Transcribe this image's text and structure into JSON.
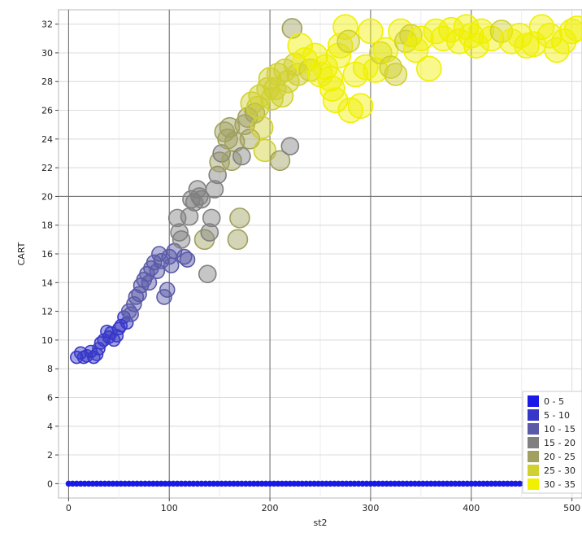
{
  "chart_data": {
    "type": "scatter",
    "xlabel": "st2",
    "ylabel": "CART",
    "xlim": [
      -10,
      510
    ],
    "ylim": [
      -1,
      33
    ],
    "x_ticks": [
      0,
      100,
      200,
      300,
      400,
      500
    ],
    "y_ticks": [
      0,
      2,
      4,
      6,
      8,
      10,
      12,
      14,
      16,
      18,
      20,
      22,
      24,
      26,
      28,
      30,
      32
    ],
    "major_gridlines": {
      "x": [
        0,
        100,
        200,
        300,
        400
      ],
      "y": [
        20
      ]
    },
    "grid": true,
    "legend_position": "bottom-right",
    "legend": [
      {
        "label": "0 - 5",
        "color": "#1a1ae6"
      },
      {
        "label": "5 - 10",
        "color": "#3838c8"
      },
      {
        "label": "10 - 15",
        "color": "#5a5aa8"
      },
      {
        "label": "15 - 20",
        "color": "#808080"
      },
      {
        "label": "20 - 25",
        "color": "#a0a060"
      },
      {
        "label": "25 - 30",
        "color": "#d0d030"
      },
      {
        "label": "30 - 35",
        "color": "#f0f000"
      }
    ],
    "points": [
      [
        8,
        8.8,
        1
      ],
      [
        12,
        9.1,
        1
      ],
      [
        15,
        8.8,
        1
      ],
      [
        18,
        8.9,
        1
      ],
      [
        22,
        9.2,
        1
      ],
      [
        25,
        8.8,
        1
      ],
      [
        28,
        9.0,
        1
      ],
      [
        30,
        9.4,
        1
      ],
      [
        32,
        9.8,
        1
      ],
      [
        35,
        10.0,
        1
      ],
      [
        38,
        10.6,
        1
      ],
      [
        40,
        10.2,
        1
      ],
      [
        42,
        10.5,
        1
      ],
      [
        45,
        10.0,
        1
      ],
      [
        48,
        10.3,
        1
      ],
      [
        50,
        10.8,
        1
      ],
      [
        52,
        11.0,
        1
      ],
      [
        55,
        11.6,
        1
      ],
      [
        58,
        11.2,
        1
      ],
      [
        60,
        12.0,
        2
      ],
      [
        62,
        11.8,
        2
      ],
      [
        65,
        12.5,
        2
      ],
      [
        67,
        13.0,
        2
      ],
      [
        70,
        13.2,
        2
      ],
      [
        72,
        13.8,
        2
      ],
      [
        75,
        14.2,
        2
      ],
      [
        78,
        14.6,
        2
      ],
      [
        80,
        14.0,
        2
      ],
      [
        82,
        15.0,
        2
      ],
      [
        85,
        15.4,
        2
      ],
      [
        88,
        14.8,
        2
      ],
      [
        90,
        16.0,
        2
      ],
      [
        92,
        15.5,
        2
      ],
      [
        95,
        13.0,
        2
      ],
      [
        98,
        13.5,
        2
      ],
      [
        100,
        15.8,
        2
      ],
      [
        102,
        15.2,
        2
      ],
      [
        105,
        16.2,
        2
      ],
      [
        108,
        18.5,
        3
      ],
      [
        110,
        17.5,
        3
      ],
      [
        112,
        17.0,
        3
      ],
      [
        115,
        15.8,
        2
      ],
      [
        118,
        15.6,
        2
      ],
      [
        120,
        18.6,
        3
      ],
      [
        122,
        19.8,
        3
      ],
      [
        125,
        19.6,
        3
      ],
      [
        128,
        20.5,
        3
      ],
      [
        130,
        20.0,
        3
      ],
      [
        132,
        19.8,
        3
      ],
      [
        135,
        17.0,
        4
      ],
      [
        138,
        14.6,
        3
      ],
      [
        140,
        17.5,
        3
      ],
      [
        142,
        18.5,
        3
      ],
      [
        145,
        20.5,
        3
      ],
      [
        148,
        21.5,
        3
      ],
      [
        150,
        22.4,
        4
      ],
      [
        152,
        23.0,
        3
      ],
      [
        155,
        24.5,
        4
      ],
      [
        158,
        24.0,
        4
      ],
      [
        160,
        24.8,
        4
      ],
      [
        162,
        22.5,
        4
      ],
      [
        165,
        23.8,
        4
      ],
      [
        168,
        17.0,
        4
      ],
      [
        170,
        18.5,
        4
      ],
      [
        172,
        22.8,
        3
      ],
      [
        175,
        25.0,
        4
      ],
      [
        178,
        25.5,
        4
      ],
      [
        180,
        24.0,
        4
      ],
      [
        182,
        26.5,
        5
      ],
      [
        185,
        25.8,
        4
      ],
      [
        188,
        26.2,
        5
      ],
      [
        190,
        27.0,
        5
      ],
      [
        192,
        24.8,
        5
      ],
      [
        195,
        23.2,
        5
      ],
      [
        198,
        27.5,
        5
      ],
      [
        200,
        28.2,
        5
      ],
      [
        202,
        26.8,
        5
      ],
      [
        205,
        27.5,
        5
      ],
      [
        208,
        28.5,
        5
      ],
      [
        210,
        22.5,
        4
      ],
      [
        212,
        27.0,
        5
      ],
      [
        215,
        28.8,
        5
      ],
      [
        218,
        28.0,
        5
      ],
      [
        220,
        23.5,
        3
      ],
      [
        222,
        31.7,
        4
      ],
      [
        225,
        29.2,
        5
      ],
      [
        228,
        28.5,
        5
      ],
      [
        230,
        30.5,
        6
      ],
      [
        235,
        29.5,
        6
      ],
      [
        240,
        28.8,
        5
      ],
      [
        245,
        29.8,
        6
      ],
      [
        250,
        28.5,
        6
      ],
      [
        255,
        29.0,
        6
      ],
      [
        260,
        28.2,
        6
      ],
      [
        262,
        27.5,
        6
      ],
      [
        265,
        26.7,
        6
      ],
      [
        268,
        29.8,
        6
      ],
      [
        270,
        30.5,
        6
      ],
      [
        275,
        31.8,
        6
      ],
      [
        278,
        30.8,
        5
      ],
      [
        280,
        26.0,
        6
      ],
      [
        285,
        28.5,
        6
      ],
      [
        290,
        26.3,
        6
      ],
      [
        295,
        29.0,
        6
      ],
      [
        300,
        31.5,
        6
      ],
      [
        305,
        28.8,
        6
      ],
      [
        310,
        30.0,
        5
      ],
      [
        315,
        30.2,
        6
      ],
      [
        320,
        29.0,
        5
      ],
      [
        325,
        28.5,
        5
      ],
      [
        330,
        31.5,
        6
      ],
      [
        335,
        30.8,
        5
      ],
      [
        340,
        31.2,
        5
      ],
      [
        345,
        30.2,
        6
      ],
      [
        350,
        31.0,
        6
      ],
      [
        358,
        28.9,
        6
      ],
      [
        365,
        31.5,
        6
      ],
      [
        372,
        31.0,
        6
      ],
      [
        380,
        31.6,
        6
      ],
      [
        388,
        30.8,
        6
      ],
      [
        395,
        31.8,
        6
      ],
      [
        400,
        31.2,
        6
      ],
      [
        405,
        30.5,
        6
      ],
      [
        410,
        31.5,
        6
      ],
      [
        420,
        31.0,
        6
      ],
      [
        430,
        31.5,
        5
      ],
      [
        440,
        30.8,
        6
      ],
      [
        448,
        31.2,
        6
      ],
      [
        455,
        30.5,
        6
      ],
      [
        462,
        30.6,
        6
      ],
      [
        470,
        31.8,
        6
      ],
      [
        478,
        31.2,
        6
      ],
      [
        485,
        30.2,
        6
      ],
      [
        492,
        30.8,
        6
      ],
      [
        500,
        31.5,
        6
      ],
      [
        505,
        31.7,
        6
      ]
    ]
  }
}
